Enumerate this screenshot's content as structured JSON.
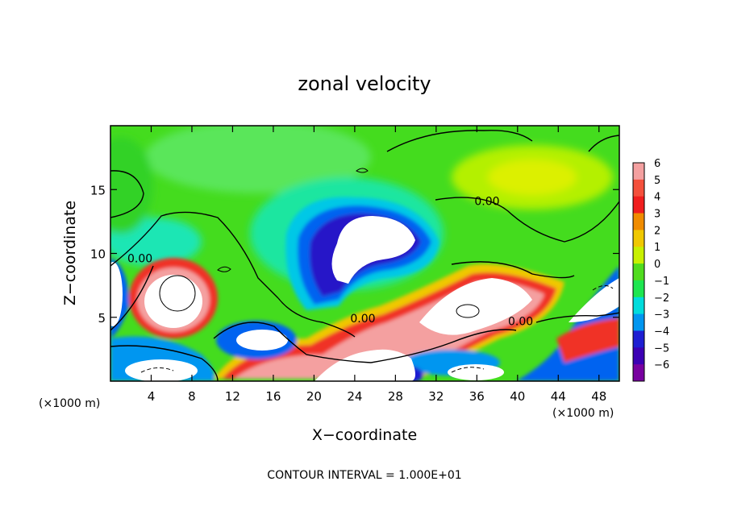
{
  "chart_data": {
    "type": "heatmap",
    "title": "zonal velocity",
    "xlabel": "X−coordinate",
    "ylabel": "Z−coordinate",
    "x_unit_left": "(×1000 m)",
    "x_unit_right": "(×1000 m)",
    "footer": "CONTOUR INTERVAL = 1.000E+01",
    "xlim": [
      0,
      50
    ],
    "ylim": [
      0,
      20
    ],
    "x_ticks": [
      4,
      8,
      12,
      16,
      20,
      24,
      28,
      32,
      36,
      40,
      44,
      48
    ],
    "x_tick_labels": [
      "4",
      "8",
      "12",
      "16",
      "20",
      "24",
      "28",
      "32",
      "36",
      "40",
      "44",
      "48"
    ],
    "y_ticks": [
      5,
      10,
      15
    ],
    "y_tick_labels": [
      "5",
      "10",
      "15"
    ],
    "colorbar": {
      "levels": [
        6,
        5,
        4,
        3,
        2,
        1,
        0,
        -1,
        -2,
        -3,
        -4,
        -5,
        -6
      ],
      "labels": [
        "6",
        "5",
        "4",
        "3",
        "2",
        "1",
        "0",
        "−1",
        "−2",
        "−3",
        "−4",
        "−5",
        "−6"
      ],
      "colors": [
        "#f4a0a0",
        "#f4503c",
        "#f01e1e",
        "#f08c00",
        "#f0c800",
        "#c8f000",
        "#50dc1e",
        "#1ee650",
        "#00dcdc",
        "#0096f0",
        "#1e1ed2",
        "#3c00b4",
        "#7800a0"
      ]
    },
    "contour_labels": [
      {
        "text": "0.00",
        "x": 2.9,
        "z": 9.3
      },
      {
        "text": "0.00",
        "x": 24.8,
        "z": 4.6
      },
      {
        "text": "0.00",
        "x": 37.0,
        "z": 13.8
      },
      {
        "text": "0.00",
        "x": 40.3,
        "z": 4.4
      }
    ]
  }
}
